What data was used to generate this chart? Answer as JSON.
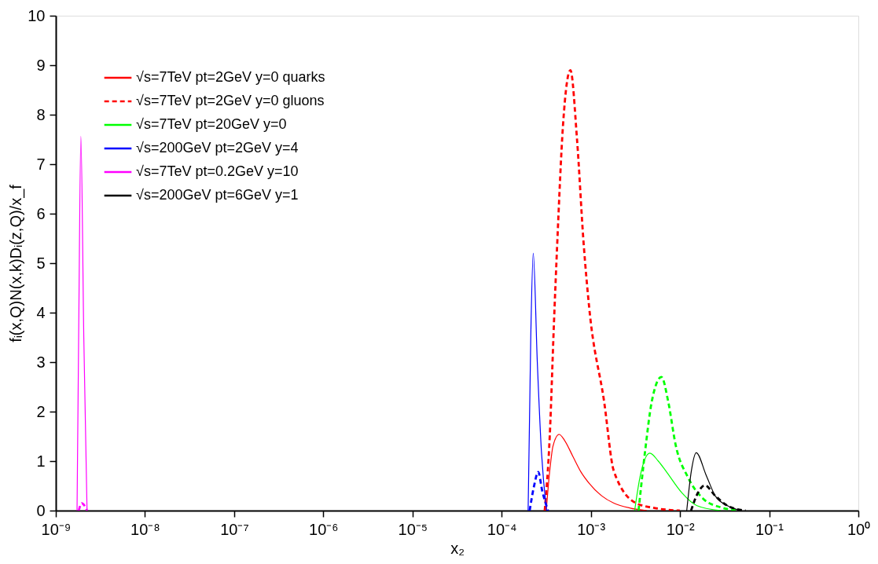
{
  "chart_data": {
    "type": "line",
    "xlabel": "x₂",
    "ylabel": "fᵢ(x,Q)N(x,k)Dᵢ(z,Q)/x_f",
    "log": "x",
    "grid": false,
    "legend": "top left",
    "marker": "none",
    "xlim": [
      1e-09,
      1
    ],
    "ylim": [
      0,
      10
    ],
    "xticks": [
      {
        "value": 1e-09,
        "label": "10⁻⁹"
      },
      {
        "value": 1e-08,
        "label": "10⁻⁸"
      },
      {
        "value": 1e-07,
        "label": "10⁻⁷"
      },
      {
        "value": 1e-06,
        "label": "10⁻⁶"
      },
      {
        "value": 1e-05,
        "label": "10⁻⁵"
      },
      {
        "value": 0.0001,
        "label": "10⁻⁴"
      },
      {
        "value": 0.001,
        "label": "10⁻³"
      },
      {
        "value": 0.01,
        "label": "10⁻²"
      },
      {
        "value": 0.1,
        "label": "10⁻¹"
      },
      {
        "value": 1,
        "label": "10⁰"
      }
    ],
    "yticks": [
      0,
      1,
      2,
      3,
      4,
      5,
      6,
      7,
      8,
      9,
      10
    ],
    "series": [
      {
        "name": "√s=7TeV pt=2GeV y=0 quarks",
        "color": "#ff0000",
        "line_style": "solid",
        "x": [
          0.000316,
          0.000346,
          0.000376,
          0.00044,
          0.000507,
          0.000627,
          0.000775,
          0.000959,
          0.00132,
          0.00181,
          0.00277,
          0.00425
        ],
        "values": [
          0,
          0.8,
          1.3,
          1.54,
          1.42,
          1.1,
          0.78,
          0.55,
          0.3,
          0.15,
          0.05,
          0
        ]
      },
      {
        "name": "√s=7TeV pt=2GeV y=0 gluons",
        "color": "#ff0000",
        "line_style": "dashed",
        "x": [
          0.000304,
          0.000346,
          0.000386,
          0.00042,
          0.000488,
          0.00059,
          0.0007,
          0.00083,
          0.000959,
          0.00141,
          0.00181,
          0.00322,
          0.00525,
          0.00993
        ],
        "values": [
          0,
          1.5,
          3.8,
          5.4,
          7.8,
          8.9,
          7.5,
          5.4,
          4.1,
          2.2,
          0.8,
          0.15,
          0.05,
          0
        ]
      },
      {
        "name": "√s=7TeV pt=20GeV y=0",
        "color": "#00ff00",
        "line_style": "solid",
        "x": [
          0.0031,
          0.00358,
          0.00459,
          0.00571,
          0.00707,
          0.0105,
          0.0155,
          0.0287
        ],
        "values": [
          0,
          0.7,
          1.16,
          1.0,
          0.78,
          0.36,
          0.1,
          0
        ]
      },
      {
        "color": "#00ff00",
        "line_style": "dashed",
        "x": [
          0.00343,
          0.00406,
          0.00482,
          0.00619,
          0.00738,
          0.00893,
          0.0123,
          0.0182,
          0.0294,
          0.044
        ],
        "values": [
          0,
          1.2,
          2.2,
          2.7,
          2.2,
          1.33,
          0.67,
          0.24,
          0.06,
          0
        ]
      },
      {
        "name": "√s=200GeV pt=2GeV y=4",
        "color": "#0000ff",
        "line_style": "solid",
        "x": [
          0.000198,
          0.000212,
          0.000226,
          0.000251,
          0.000279,
          0.000319
        ],
        "values": [
          0,
          3.5,
          5.2,
          3.0,
          1.2,
          0
        ]
      },
      {
        "color": "#0000ff",
        "line_style": "dashed",
        "x": [
          0.000206,
          0.000231,
          0.000257,
          0.000285,
          0.000331
        ],
        "values": [
          0,
          0.5,
          0.78,
          0.4,
          0
        ]
      },
      {
        "name": "√s=7TeV pt=0.2GeV y=10",
        "color": "#ff00ff",
        "line_style": "solid",
        "x": [
          1.73e-09,
          1.81e-09,
          1.91e-09,
          2.06e-09,
          2.24e-09
        ],
        "values": [
          0,
          3.8,
          7.56,
          3.5,
          0
        ]
      },
      {
        "color": "#ff00ff",
        "line_style": "dashed",
        "x": [
          1.81e-09,
          1.95e-09,
          2.1e-09,
          2.24e-09
        ],
        "values": [
          0,
          0.15,
          0.1,
          0
        ]
      },
      {
        "name": "√s=200GeV pt=6GeV y=1",
        "color": "#000000",
        "line_style": "solid",
        "x": [
          0.0119,
          0.0134,
          0.0152,
          0.0196,
          0.0248,
          0.034,
          0.0489
        ],
        "values": [
          0,
          0.8,
          1.17,
          0.72,
          0.3,
          0.1,
          0
        ]
      },
      {
        "color": "#000000",
        "line_style": "dashed",
        "x": [
          0.0133,
          0.0158,
          0.019,
          0.0248,
          0.034,
          0.0543
        ],
        "values": [
          0,
          0.35,
          0.51,
          0.3,
          0.1,
          0
        ]
      }
    ]
  }
}
